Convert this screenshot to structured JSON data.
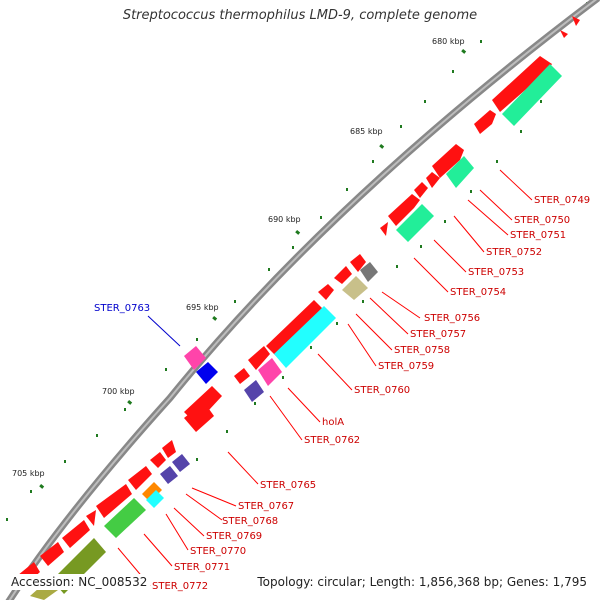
{
  "title": "Streptococcus thermophilus LMD-9, complete genome",
  "footer": {
    "accession": "Accession: NC_008532",
    "summary": "Topology: circular; Length: 1,856,368 bp; Genes: 1,795"
  },
  "colors": {
    "backbone": "#8a8a8a",
    "tick": "#1f7a1f",
    "label_red": "#cc0000",
    "label_blue": "#0000cc"
  },
  "scale_labels": [
    "680 kbp",
    "685 kbp",
    "690 kbp",
    "695 kbp",
    "700 kbp",
    "705 kbp"
  ],
  "gene_labels": [
    {
      "text": "STER_0749",
      "color": "red"
    },
    {
      "text": "STER_0750",
      "color": "red"
    },
    {
      "text": "STER_0751",
      "color": "red"
    },
    {
      "text": "STER_0752",
      "color": "red"
    },
    {
      "text": "STER_0753",
      "color": "red"
    },
    {
      "text": "STER_0754",
      "color": "red"
    },
    {
      "text": "STER_0756",
      "color": "red"
    },
    {
      "text": "STER_0757",
      "color": "red"
    },
    {
      "text": "STER_0758",
      "color": "red"
    },
    {
      "text": "STER_0759",
      "color": "red"
    },
    {
      "text": "STER_0760",
      "color": "red"
    },
    {
      "text": "holA",
      "color": "red"
    },
    {
      "text": "STER_0762",
      "color": "red"
    },
    {
      "text": "STER_0763",
      "color": "blue"
    },
    {
      "text": "STER_0765",
      "color": "red"
    },
    {
      "text": "STER_0767",
      "color": "red"
    },
    {
      "text": "STER_0768",
      "color": "red"
    },
    {
      "text": "STER_0769",
      "color": "red"
    },
    {
      "text": "STER_0770",
      "color": "red"
    },
    {
      "text": "STER_0771",
      "color": "red"
    },
    {
      "text": "STER_0772",
      "color": "red"
    }
  ]
}
